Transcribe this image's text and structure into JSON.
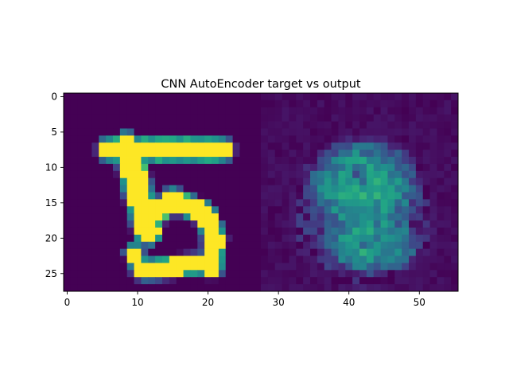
{
  "chart_data": {
    "type": "heatmap",
    "title": "CNN AutoEncoder target vs output",
    "xlabel": "",
    "ylabel": "",
    "xlim": [
      -0.5,
      55.5
    ],
    "ylim": [
      27.5,
      -0.5
    ],
    "xticks": [
      0,
      10,
      20,
      30,
      40,
      50
    ],
    "yticks": [
      0,
      5,
      10,
      15,
      20,
      25
    ],
    "colormap": "viridis",
    "colors": {
      "background": "#440154",
      "mid": "#21918c",
      "high": "#fde725"
    },
    "grid": false,
    "legend": "none",
    "image_width": 56,
    "image_height": 28,
    "panels": [
      {
        "name": "target",
        "columns": [
          0,
          27
        ]
      },
      {
        "name": "output",
        "columns": [
          28,
          55
        ]
      }
    ],
    "target_strokes": [
      {
        "kind": "segment",
        "points": [
          [
            6,
            7.5
          ],
          [
            22,
            7.5
          ]
        ],
        "width": 2.6,
        "value": 1.0
      },
      {
        "kind": "segment",
        "points": [
          [
            8.5,
            7
          ],
          [
            11.5,
            19
          ]
        ],
        "width": 3.2,
        "value": 1.0
      },
      {
        "kind": "segment",
        "points": [
          [
            11,
            18
          ],
          [
            15,
            14.5
          ],
          [
            19.5,
            16.5
          ],
          [
            21,
            20
          ],
          [
            20.5,
            24
          ]
        ],
        "width": 2.4,
        "value": 1.0
      },
      {
        "kind": "segment",
        "points": [
          [
            20.5,
            23.5
          ],
          [
            11,
            24.5
          ]
        ],
        "width": 2.2,
        "value": 1.0
      },
      {
        "kind": "segment",
        "points": [
          [
            10.5,
            24.5
          ],
          [
            9.5,
            22
          ]
        ],
        "width": 1.8,
        "value": 1.0
      }
    ],
    "output_blobs": [
      {
        "cx": 42,
        "cy": 13,
        "rx": 9,
        "ry": 8,
        "value": 0.55
      },
      {
        "cx": 43,
        "cy": 20.5,
        "rx": 8,
        "ry": 5,
        "value": 0.55
      },
      {
        "cx": 42,
        "cy": 17,
        "rx": 11,
        "ry": 11,
        "value": 0.18
      }
    ],
    "output_holes": [
      {
        "cx": 41.5,
        "cy": 11,
        "rx": 2,
        "ry": 2,
        "value": 0.25
      },
      {
        "cx": 42.5,
        "cy": 20.5,
        "rx": 2.5,
        "ry": 1.5,
        "value": 0.25
      }
    ]
  }
}
